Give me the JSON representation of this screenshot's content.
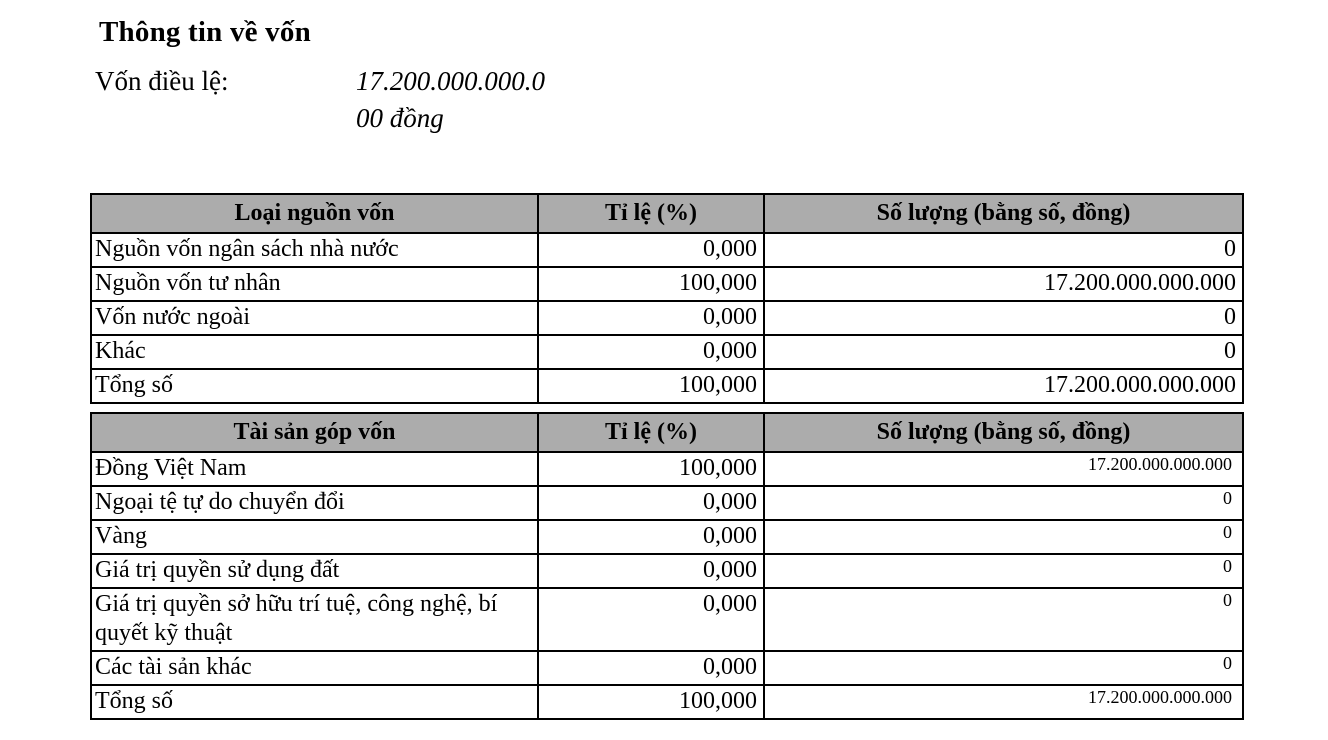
{
  "document": {
    "title": "Thông tin về vốn",
    "charter_capital": {
      "label": "Vốn điều lệ:",
      "value": "17.200.000.000.000 đồng"
    }
  },
  "capital_sources_table": {
    "headers": [
      "Loại nguồn vốn",
      "Tỉ lệ (%)",
      "Số lượng (bằng số, đồng)"
    ],
    "rows": [
      {
        "label": "Nguồn vốn ngân sách nhà nước",
        "ratio": "0,000",
        "amount": "0"
      },
      {
        "label": "Nguồn vốn tư nhân",
        "ratio": "100,000",
        "amount": "17.200.000.000.000"
      },
      {
        "label": "Vốn nước ngoài",
        "ratio": "0,000",
        "amount": "0"
      },
      {
        "label": "Khác",
        "ratio": "0,000",
        "amount": "0"
      },
      {
        "label": "Tổng số",
        "ratio": "100,000",
        "amount": "17.200.000.000.000"
      }
    ]
  },
  "assets_table": {
    "headers": [
      "Tài sản góp vốn",
      "Tỉ lệ (%)",
      "Số lượng (bằng số, đồng)"
    ],
    "rows": [
      {
        "label": "Đồng Việt Nam",
        "ratio": "100,000",
        "amount": "17.200.000.000.000"
      },
      {
        "label": "Ngoại tệ tự do chuyển đổi",
        "ratio": "0,000",
        "amount": "0"
      },
      {
        "label": "Vàng",
        "ratio": "0,000",
        "amount": "0"
      },
      {
        "label": "Giá trị quyền sử dụng đất",
        "ratio": "0,000",
        "amount": "0"
      },
      {
        "label": "Giá trị quyền sở hữu trí tuệ, công nghệ, bí quyết kỹ thuật",
        "ratio": "0,000",
        "amount": "0"
      },
      {
        "label": "Các tài sản khác",
        "ratio": "0,000",
        "amount": "0"
      },
      {
        "label": "Tổng số",
        "ratio": "100,000",
        "amount": "17.200.000.000.000"
      }
    ]
  },
  "colors": {
    "header_bg": "#acacac",
    "border": "#000000",
    "text": "#000000",
    "background": "#ffffff"
  }
}
